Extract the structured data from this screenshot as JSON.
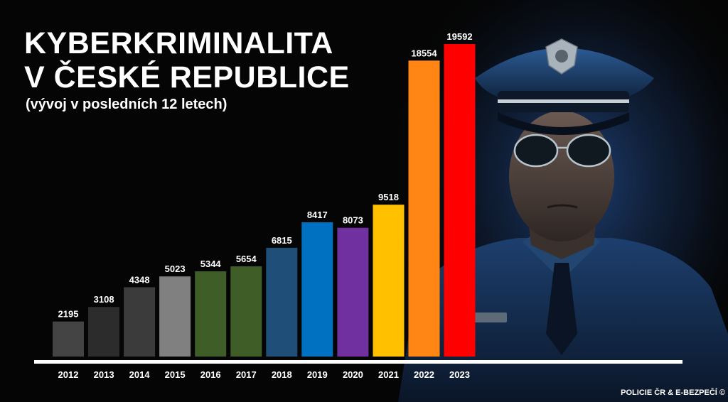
{
  "title_line1": "KYBERKRIMINALITA",
  "title_line2": "V ČESKÉ REPUBLICE",
  "subtitle": "(vývoj v posledních 12 letech)",
  "credit": "POLICIE ČR & E-BEZPEČÍ ©",
  "chart_data": {
    "type": "bar",
    "title": "KYBERKRIMINALITA V ČESKÉ REPUBLICE",
    "subtitle": "(vývoj v posledních 12 letech)",
    "xlabel": "",
    "ylabel": "",
    "categories": [
      "2012",
      "2013",
      "2014",
      "2015",
      "2016",
      "2017",
      "2018",
      "2019",
      "2020",
      "2021",
      "2022",
      "2023"
    ],
    "values": [
      2195,
      3108,
      4348,
      5023,
      5344,
      5654,
      6815,
      8417,
      8073,
      9518,
      18554,
      19592
    ],
    "colors": [
      "#444444",
      "#2c2c2c",
      "#3b3b3b",
      "#808080",
      "#3f5e27",
      "#3f5e27",
      "#1f4e79",
      "#0070c0",
      "#7030a0",
      "#ffc000",
      "#ff8515",
      "#ff0000"
    ],
    "ylim": [
      0,
      19592
    ],
    "grid": false,
    "data_labels": true
  },
  "photo": {
    "icon": "police-officer-photo-icon",
    "uniform_color": "#1d3f6e",
    "glow_color": "#234a88"
  }
}
